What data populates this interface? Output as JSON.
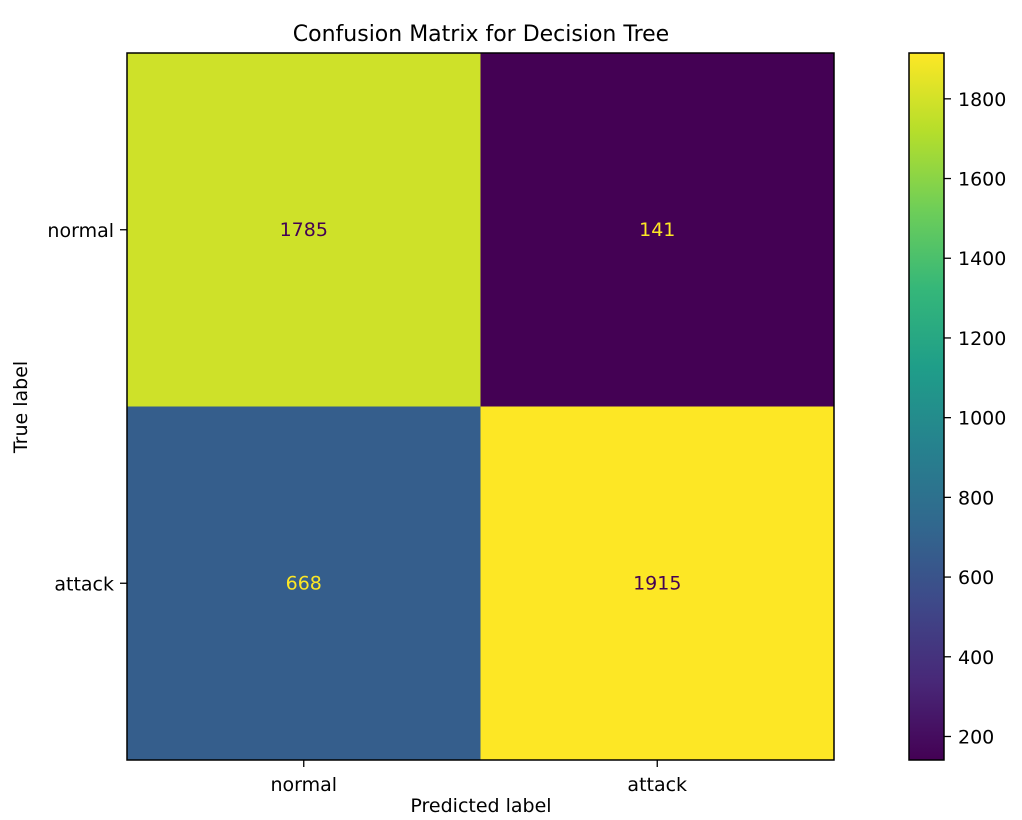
{
  "chart_data": {
    "type": "heatmap",
    "title": "Confusion Matrix for Decision Tree",
    "xlabel": "Predicted label",
    "ylabel": "True label",
    "x_categories": [
      "normal",
      "attack"
    ],
    "y_categories": [
      "normal",
      "attack"
    ],
    "values": [
      [
        1785,
        141
      ],
      [
        668,
        1915
      ]
    ],
    "colormap": "viridis",
    "colorbar": {
      "min": 141,
      "max": 1915,
      "ticks": [
        200,
        400,
        600,
        800,
        1000,
        1200,
        1400,
        1600,
        1800
      ]
    },
    "grid": false
  },
  "colors": {
    "text_on_light": "#440154",
    "text_on_dark": "#fde725"
  }
}
